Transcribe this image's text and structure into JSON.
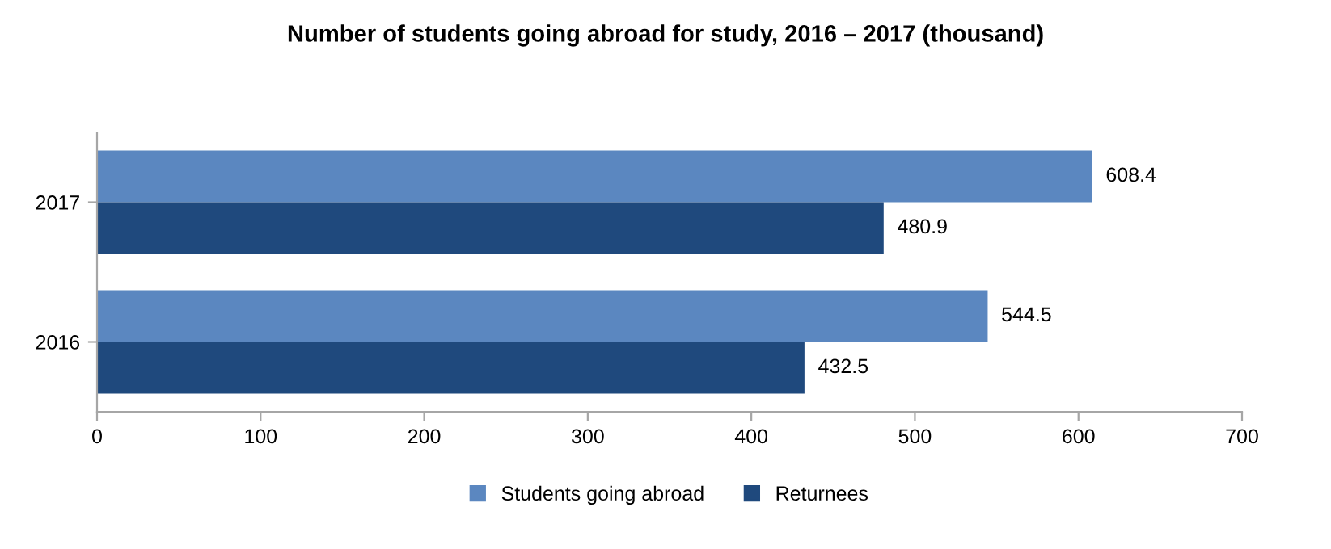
{
  "chart_data": {
    "type": "bar",
    "orientation": "horizontal",
    "title": "Number of students going abroad for study, 2016 – 2017 (thousand)",
    "categories": [
      "2017",
      "2016"
    ],
    "series": [
      {
        "name": "Students going abroad",
        "color": "#5b87c0",
        "values": [
          608.4,
          544.5
        ]
      },
      {
        "name": "Returnees",
        "color": "#1f497d",
        "values": [
          480.9,
          432.5
        ]
      }
    ],
    "xlim": [
      0,
      700
    ],
    "xticks": [
      0,
      100,
      200,
      300,
      400,
      500,
      600,
      700
    ],
    "data_labels": true,
    "grid": false,
    "legend": "bottom"
  }
}
